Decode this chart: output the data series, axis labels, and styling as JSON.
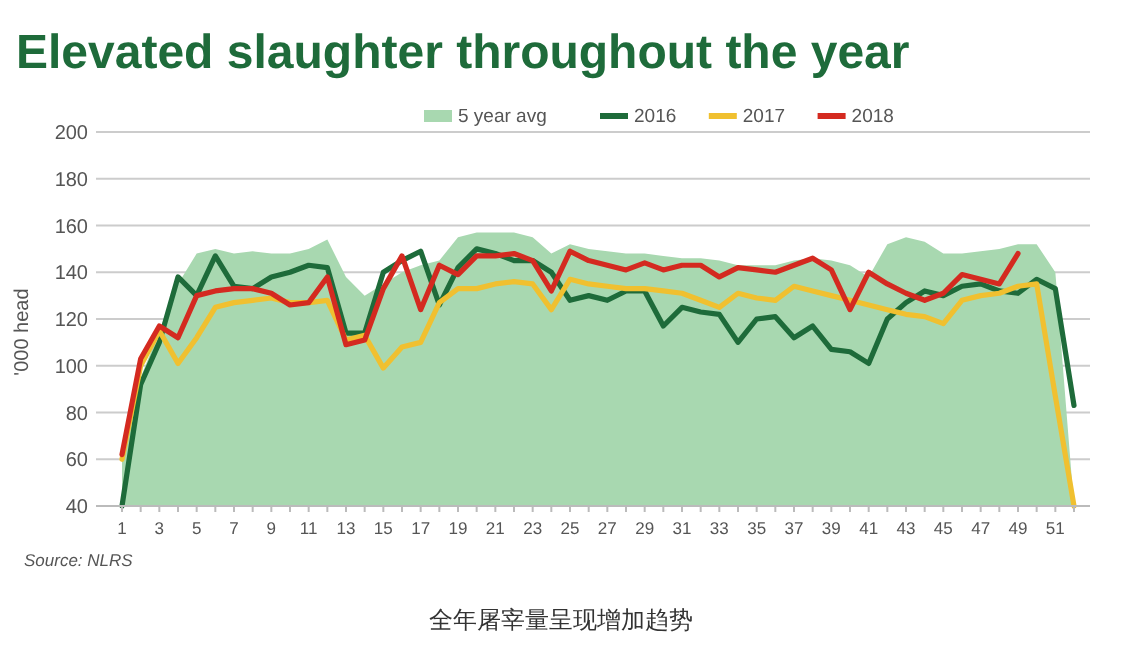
{
  "chart_data": {
    "type": "line",
    "title": "Elevated slaughter throughout the year",
    "ylabel": "'000 head",
    "x": [
      1,
      2,
      3,
      4,
      5,
      6,
      7,
      8,
      9,
      10,
      11,
      12,
      13,
      14,
      15,
      16,
      17,
      18,
      19,
      20,
      21,
      22,
      23,
      24,
      25,
      26,
      27,
      28,
      29,
      30,
      31,
      32,
      33,
      34,
      35,
      36,
      37,
      38,
      39,
      40,
      41,
      42,
      43,
      44,
      45,
      46,
      47,
      48,
      49,
      50,
      51,
      52
    ],
    "xlim": [
      1,
      52
    ],
    "xticks": [
      1,
      {
        "value": 2,
        "label": null
      },
      3,
      {
        "value": 4,
        "label": null
      },
      5,
      {
        "value": 6,
        "label": null
      },
      7,
      {
        "value": 8,
        "label": null
      },
      9,
      {
        "value": 10,
        "label": null
      },
      11,
      {
        "value": 12,
        "label": null
      },
      13,
      {
        "value": 14,
        "label": null
      },
      15,
      {
        "value": 16,
        "label": null
      },
      17,
      {
        "value": 18,
        "label": null
      },
      19,
      {
        "value": 20,
        "label": null
      },
      21,
      {
        "value": 22,
        "label": null
      },
      23,
      {
        "value": 24,
        "label": null
      },
      25,
      {
        "value": 26,
        "label": null
      },
      27,
      {
        "value": 28,
        "label": null
      },
      29,
      {
        "value": 30,
        "label": null
      },
      31,
      {
        "value": 32,
        "label": null
      },
      33,
      {
        "value": 34,
        "label": null
      },
      35,
      {
        "value": 36,
        "label": null
      },
      37,
      {
        "value": 38,
        "label": null
      },
      39,
      {
        "value": 40,
        "label": null
      },
      41,
      {
        "value": 42,
        "label": null
      },
      43,
      {
        "value": 44,
        "label": null
      },
      45,
      {
        "value": 46,
        "label": null
      },
      47,
      {
        "value": 48,
        "label": null
      },
      49,
      {
        "value": 50,
        "label": null
      },
      51,
      {
        "value": 52,
        "label": null
      }
    ],
    "ylim": [
      40,
      200
    ],
    "yticks": [
      40,
      60,
      80,
      100,
      120,
      140,
      160,
      180,
      200
    ],
    "grid": "y",
    "legend": "top",
    "marker": "none",
    "line_style": "solid",
    "series": [
      {
        "name": "5 year avg",
        "type": "area",
        "color": "#a8d8b0",
        "values": [
          60,
          95,
          115,
          135,
          148,
          150,
          148,
          149,
          148,
          148,
          150,
          154,
          138,
          130,
          135,
          140,
          143,
          145,
          155,
          157,
          157,
          157,
          155,
          148,
          152,
          150,
          149,
          148,
          148,
          147,
          146,
          146,
          145,
          143,
          143,
          143,
          145,
          146,
          145,
          143,
          138,
          152,
          155,
          153,
          148,
          148,
          149,
          150,
          152,
          152,
          140,
          40
        ]
      },
      {
        "name": "2016",
        "color": "#1e6b3a",
        "values": [
          40,
          92,
          110,
          138,
          130,
          147,
          134,
          133,
          138,
          140,
          143,
          142,
          114,
          114,
          140,
          145,
          149,
          126,
          142,
          150,
          148,
          145,
          145,
          140,
          128,
          130,
          128,
          132,
          132,
          117,
          125,
          123,
          122,
          110,
          120,
          121,
          112,
          117,
          107,
          106,
          101,
          120,
          127,
          132,
          130,
          134,
          135,
          132,
          131,
          137,
          133,
          83
        ]
      },
      {
        "name": "2017",
        "color": "#f0c030",
        "values": [
          60,
          100,
          115,
          101,
          112,
          125,
          127,
          128,
          129,
          127,
          127,
          128,
          111,
          113,
          99,
          108,
          110,
          127,
          133,
          133,
          135,
          136,
          135,
          124,
          137,
          135,
          134,
          133,
          133,
          132,
          131,
          128,
          125,
          131,
          129,
          128,
          134,
          132,
          130,
          128,
          126,
          124,
          122,
          121,
          118,
          128,
          130,
          131,
          134,
          135,
          87,
          40
        ]
      },
      {
        "name": "2018",
        "color": "#d42a20",
        "values": [
          62,
          103,
          117,
          112,
          130,
          132,
          133,
          133,
          131,
          126,
          127,
          138,
          109,
          111,
          133,
          147,
          124,
          143,
          139,
          147,
          147,
          148,
          145,
          132,
          149,
          145,
          143,
          141,
          144,
          141,
          143,
          143,
          138,
          142,
          141,
          140,
          143,
          146,
          141,
          124,
          140,
          135,
          131,
          128,
          131,
          139,
          137,
          135,
          148,
          null,
          null,
          null
        ]
      }
    ],
    "annotations": [
      "Source: NLRS",
      "全年屠宰量呈现增加趋势"
    ]
  }
}
